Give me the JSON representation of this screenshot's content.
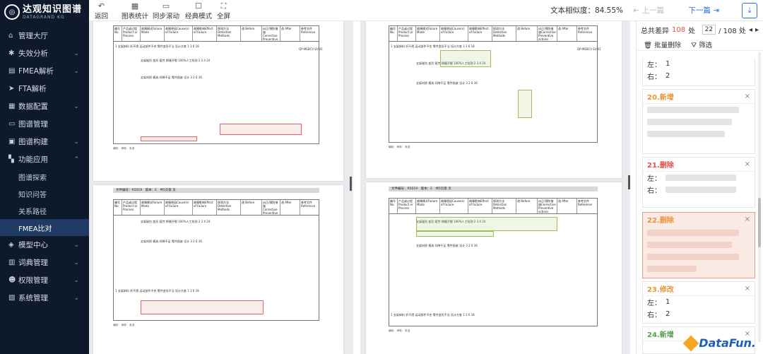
{
  "logo": {
    "title": "达观知识图谱",
    "subtitle": "DATAGRAND KG"
  },
  "nav": [
    {
      "label": "管理大厅",
      "icon": "home-icon",
      "chev": ""
    },
    {
      "label": "失效分析",
      "icon": "gear-icon",
      "chev": "⌄"
    },
    {
      "label": "FMEA解析",
      "icon": "grid-icon",
      "chev": "⌄"
    },
    {
      "label": "FTA解析",
      "icon": "send-icon",
      "chev": ""
    },
    {
      "label": "数据配置",
      "icon": "database-icon",
      "chev": "⌄"
    },
    {
      "label": "图谱管理",
      "icon": "monitor-icon",
      "chev": ""
    },
    {
      "label": "图谱构建",
      "icon": "build-icon",
      "chev": "⌄"
    },
    {
      "label": "功能应用",
      "icon": "apps-icon",
      "chev": "⌃"
    }
  ],
  "subnav": [
    {
      "label": "图谱探索"
    },
    {
      "label": "知识问答"
    },
    {
      "label": "关系路径"
    },
    {
      "label": "FMEA比对"
    }
  ],
  "nav2": [
    {
      "label": "模型中心",
      "icon": "model-icon",
      "chev": "⌄"
    },
    {
      "label": "词典管理",
      "icon": "book-icon",
      "chev": "⌄"
    },
    {
      "label": "权限管理",
      "icon": "user-icon",
      "chev": "⌄"
    },
    {
      "label": "系统管理",
      "icon": "settings-icon",
      "chev": "⌄"
    }
  ],
  "toolbar": {
    "back": "返回",
    "stats": "图表统计",
    "sync": "同步滚动",
    "classic": "经典模式",
    "fullscreen": "全屏",
    "similarity": "文本相似度：84.55%",
    "prev": "上一篇",
    "next": "下一篇"
  },
  "side": {
    "total_label": "总共差异",
    "total_count": "108",
    "unit": "处",
    "current": "22",
    "total_pages": "/ 108 处",
    "batch_delete": "批量删除",
    "filter": "筛选",
    "cards": [
      {
        "title": "",
        "cls": "",
        "left_label": "左：",
        "left_val": "1",
        "right_label": "右：",
        "right_val": "2"
      },
      {
        "title": "20.新增",
        "cls": "t-orange",
        "left_label": "",
        "left_val": "",
        "right_label": "",
        "right_val": ""
      },
      {
        "title": "21.删除",
        "cls": "t-red",
        "left_label": "左：",
        "left_val": "",
        "right_label": "右：",
        "right_val": ""
      },
      {
        "title": "22.删除",
        "cls": "t-orange",
        "left_label": "",
        "left_val": "",
        "right_label": "",
        "right_val": ""
      },
      {
        "title": "23.修改",
        "cls": "t-orange",
        "left_label": "左：",
        "left_val": "1",
        "right_label": "右：",
        "right_val": "2"
      },
      {
        "title": "24.新增",
        "cls": "t-green",
        "left_label": "",
        "left_val": "",
        "right_label": "",
        "right_val": ""
      }
    ]
  },
  "doc": {
    "file_no_label": "文件编号：",
    "file_no": "R5019",
    "version_label": "版本：",
    "version": "E",
    "page_label": "共5页第 页",
    "headers": [
      "编号No.",
      "产品或过程Product or Process",
      "故障模式Failure Mode",
      "故障原因Cause(s) of Failure",
      "故障影响Effect of Failure",
      "探测方法Detection Methods",
      "改 Before",
      "纠正/预防措施Corrective Preventive actions",
      "改 After",
      "参考文件Reference"
    ],
    "row1": "1  支架卸料  折不透  运动部件不合  零件变形不当  设计方查  1  3  6  18",
    "row2": "支架碰伤  变形  疲劳 焊缝开裂  100%人工检测  2  3  4  24",
    "row3": "支架材质  模具 间隙不足 零件报废  设计  3  2  6  36",
    "ref": "QP-MEBCV EV-01",
    "foot": "编制：  审核：  批准"
  },
  "watermark": "DataFun."
}
